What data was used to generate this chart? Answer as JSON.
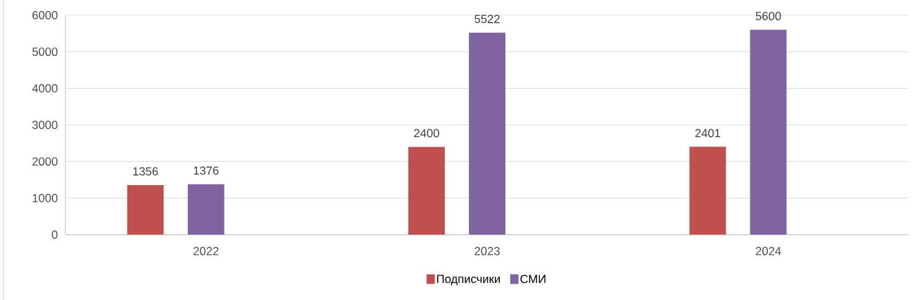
{
  "chart_data": {
    "type": "bar",
    "categories": [
      "2022",
      "2023",
      "2024"
    ],
    "series": [
      {
        "name": "Подписчики",
        "color": "#c0504d",
        "values": [
          1356,
          2400,
          2401
        ]
      },
      {
        "name": "СМИ",
        "color": "#8064a2",
        "values": [
          1376,
          5522,
          5600
        ]
      }
    ],
    "ylim": [
      0,
      6000
    ],
    "yticks": [
      0,
      1000,
      2000,
      3000,
      4000,
      5000,
      6000
    ],
    "grid": "y",
    "legend": "bottom",
    "data_labels": true
  }
}
